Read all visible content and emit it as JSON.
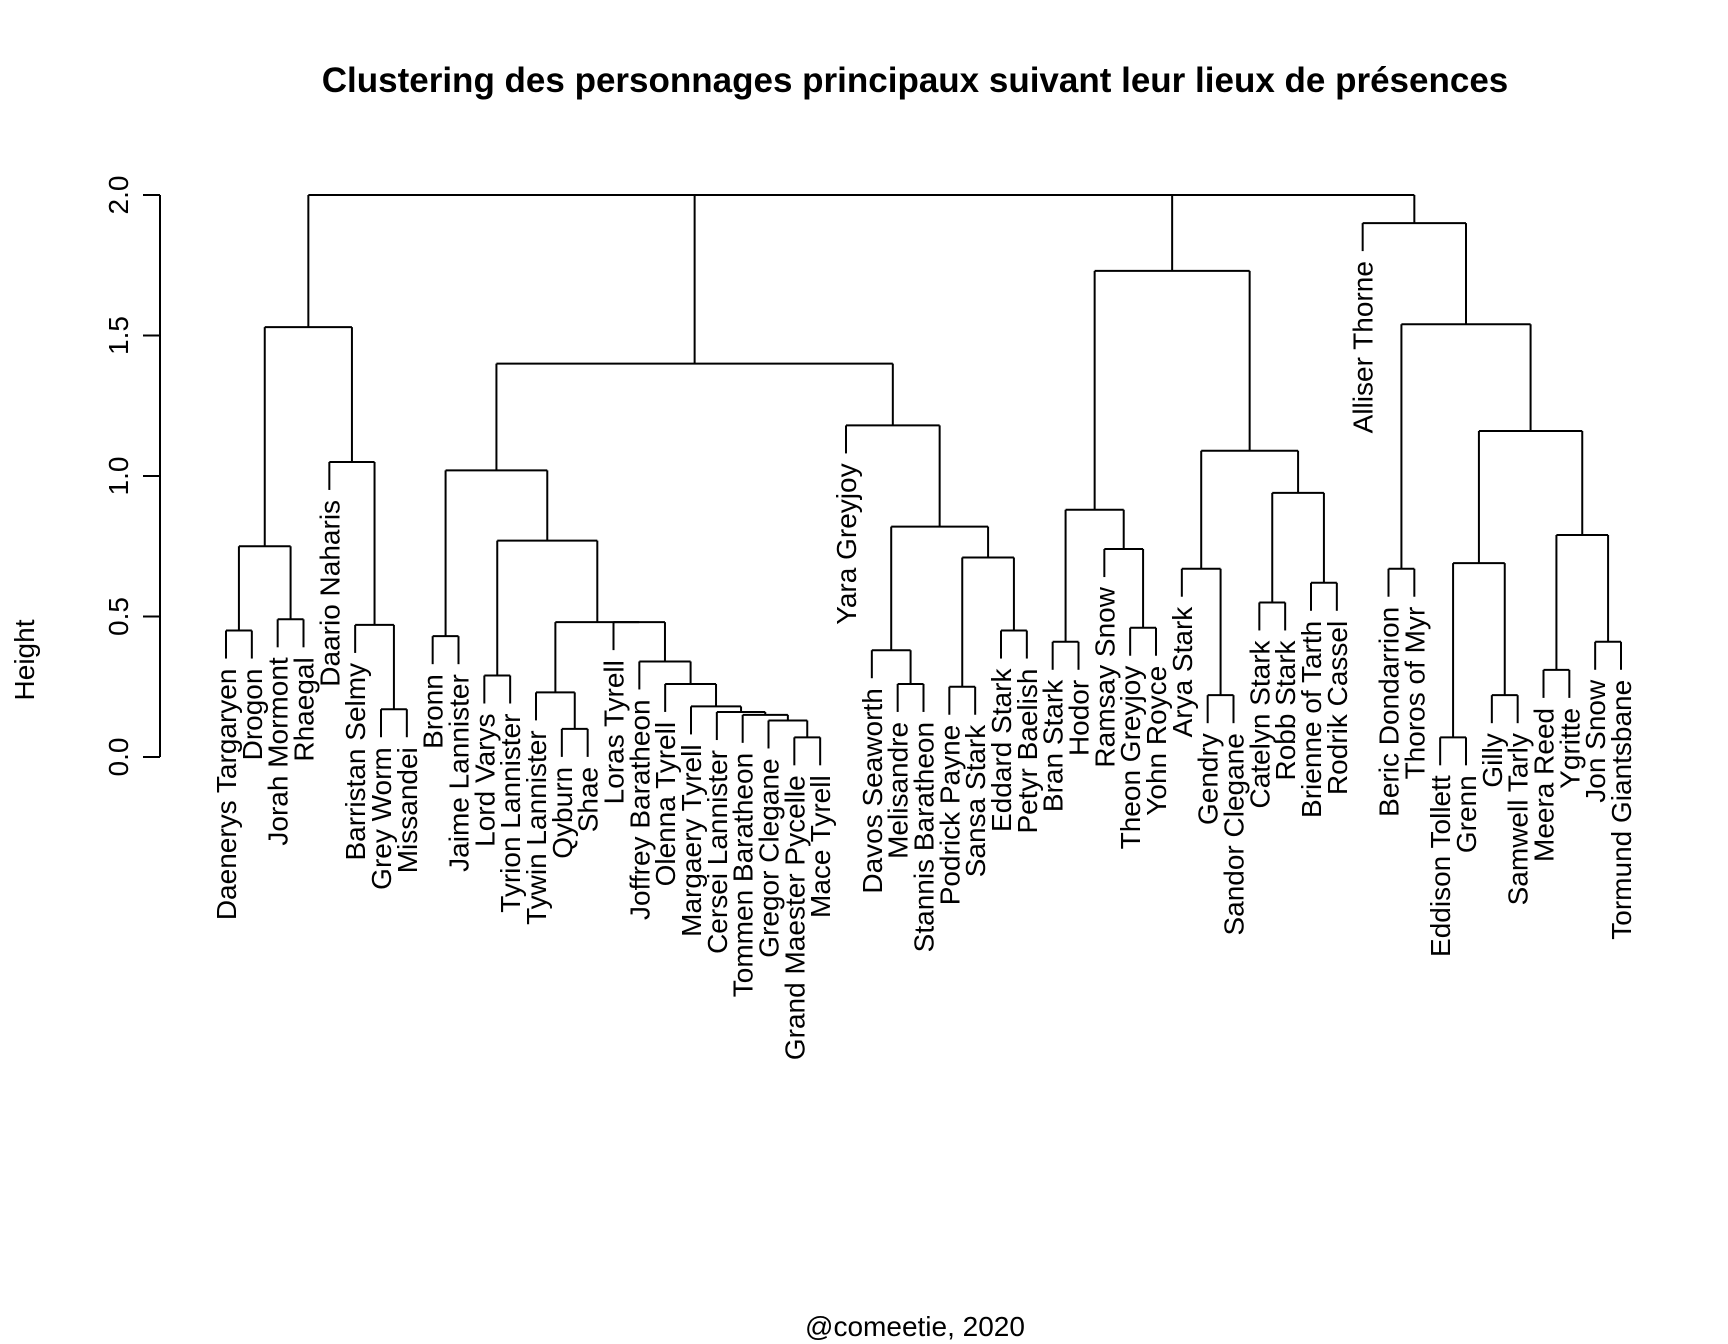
{
  "chart_data": {
    "type": "dendrogram",
    "title": "Clustering des personnages principaux suivant leur lieux de présences",
    "ylabel": "Height",
    "xlabel": "",
    "caption": "@comeetie, 2020",
    "ylim": [
      0,
      2.0
    ],
    "yticks": [
      "0.0",
      "0.5",
      "1.0",
      "1.5",
      "2.0"
    ],
    "leaves": [
      "Daenerys Targaryen",
      "Drogon",
      "Jorah Mormont",
      "Rhaegal",
      "Daario Naharis",
      "Barristan Selmy",
      "Grey Worm",
      "Missandei",
      "Bronn",
      "Jaime Lannister",
      "Lord Varys",
      "Tyrion Lannister",
      "Tywin Lannister",
      "Qyburn",
      "Shae",
      "Loras Tyrell",
      "Joffrey Baratheon",
      "Olenna Tyrell",
      "Margaery Tyrell",
      "Cersei Lannister",
      "Tommen Baratheon",
      "Gregor Clegane",
      "Grand Maester Pycelle",
      "Mace Tyrell",
      "Yara Greyjoy",
      "Davos Seaworth",
      "Melisandre",
      "Stannis Baratheon",
      "Podrick Payne",
      "Sansa Stark",
      "Eddard Stark",
      "Petyr Baelish",
      "Bran Stark",
      "Hodor",
      "Ramsay Snow",
      "Theon Greyjoy",
      "Yohn Royce",
      "Arya Stark",
      "Gendry",
      "Sandor Clegane",
      "Catelyn Stark",
      "Robb Stark",
      "Brienne of Tarth",
      "Rodrik Cassel",
      "Alliser Thorne",
      "Beric Dondarrion",
      "Thoros of Myr",
      "Eddison Tollett",
      "Grenn",
      "Gilly",
      "Samwell Tarly",
      "Meera Reed",
      "Ygritte",
      "Jon Snow",
      "Tormund Giantsbane"
    ],
    "merges": [
      {
        "id": 1,
        "a": "L0",
        "b": "L1",
        "height": 0.45
      },
      {
        "id": 2,
        "a": "L2",
        "b": "L3",
        "height": 0.49
      },
      {
        "id": 3,
        "a": "N1",
        "b": "N2",
        "height": 0.75
      },
      {
        "id": 4,
        "a": "L6",
        "b": "L7",
        "height": 0.17
      },
      {
        "id": 5,
        "a": "L5",
        "b": "N4",
        "height": 0.47
      },
      {
        "id": 6,
        "a": "L4",
        "b": "N5",
        "height": 1.05
      },
      {
        "id": 7,
        "a": "N3",
        "b": "N6",
        "height": 1.53
      },
      {
        "id": 8,
        "a": "L8",
        "b": "L9",
        "height": 0.43
      },
      {
        "id": 9,
        "a": "L10",
        "b": "L11",
        "height": 0.29
      },
      {
        "id": 10,
        "a": "L13",
        "b": "L14",
        "height": 0.1
      },
      {
        "id": 11,
        "a": "L12",
        "b": "N10",
        "height": 0.23
      },
      {
        "id": 12,
        "a": "L22",
        "b": "L23",
        "height": 0.07
      },
      {
        "id": 13,
        "a": "L21",
        "b": "N12",
        "height": 0.13
      },
      {
        "id": 14,
        "a": "L20",
        "b": "N13",
        "height": 0.15
      },
      {
        "id": 15,
        "a": "L19",
        "b": "N14",
        "height": 0.16
      },
      {
        "id": 16,
        "a": "L18",
        "b": "N15",
        "height": 0.18
      },
      {
        "id": 17,
        "a": "L17",
        "b": "N16",
        "height": 0.26
      },
      {
        "id": 18,
        "a": "L16",
        "b": "N17",
        "height": 0.34
      },
      {
        "id": 19,
        "a": "L15",
        "b": "N18",
        "height": 0.48
      },
      {
        "id": 20,
        "a": "N11",
        "b": "N19",
        "height": 0.48
      },
      {
        "id": 21,
        "a": "N9",
        "b": "N20",
        "height": 0.77
      },
      {
        "id": 22,
        "a": "N8",
        "b": "N21",
        "height": 1.02
      },
      {
        "id": 23,
        "a": "L26",
        "b": "L27",
        "height": 0.26
      },
      {
        "id": 24,
        "a": "L25",
        "b": "N23",
        "height": 0.38
      },
      {
        "id": 25,
        "a": "L28",
        "b": "L29",
        "height": 0.25
      },
      {
        "id": 26,
        "a": "L30",
        "b": "L31",
        "height": 0.45
      },
      {
        "id": 27,
        "a": "N25",
        "b": "N26",
        "height": 0.71
      },
      {
        "id": 28,
        "a": "N24",
        "b": "N27",
        "height": 0.82
      },
      {
        "id": 29,
        "a": "L24",
        "b": "N28",
        "height": 1.18
      },
      {
        "id": 30,
        "a": "N22",
        "b": "N29",
        "height": 1.4
      },
      {
        "id": 31,
        "a": "L32",
        "b": "L33",
        "height": 0.41
      },
      {
        "id": 32,
        "a": "L35",
        "b": "L36",
        "height": 0.46
      },
      {
        "id": 33,
        "a": "L34",
        "b": "N32",
        "height": 0.74
      },
      {
        "id": 34,
        "a": "N31",
        "b": "N33",
        "height": 0.88
      },
      {
        "id": 35,
        "a": "L38",
        "b": "L39",
        "height": 0.22
      },
      {
        "id": 36,
        "a": "L37",
        "b": "N35",
        "height": 0.67
      },
      {
        "id": 37,
        "a": "L40",
        "b": "L41",
        "height": 0.55
      },
      {
        "id": 38,
        "a": "L42",
        "b": "L43",
        "height": 0.62
      },
      {
        "id": 39,
        "a": "N37",
        "b": "N38",
        "height": 0.94
      },
      {
        "id": 40,
        "a": "N36",
        "b": "N39",
        "height": 1.09
      },
      {
        "id": 41,
        "a": "N34",
        "b": "N40",
        "height": 1.73
      },
      {
        "id": 42,
        "a": "L45",
        "b": "L46",
        "height": 0.67
      },
      {
        "id": 43,
        "a": "L47",
        "b": "L48",
        "height": 0.07
      },
      {
        "id": 44,
        "a": "L49",
        "b": "L50",
        "height": 0.22
      },
      {
        "id": 45,
        "a": "N43",
        "b": "N44",
        "height": 0.69
      },
      {
        "id": 46,
        "a": "L51",
        "b": "L52",
        "height": 0.31
      },
      {
        "id": 47,
        "a": "L53",
        "b": "L54",
        "height": 0.41
      },
      {
        "id": 48,
        "a": "N46",
        "b": "N47",
        "height": 0.79
      },
      {
        "id": 49,
        "a": "N45",
        "b": "N48",
        "height": 1.16
      },
      {
        "id": 50,
        "a": "N42",
        "b": "N49",
        "height": 1.54
      },
      {
        "id": 51,
        "a": "L44",
        "b": "N50",
        "height": 1.9
      },
      {
        "id": 52,
        "a": "N41",
        "b": "N51",
        "height": 2.0
      },
      {
        "id": 53,
        "a": "N30",
        "b": "N52",
        "height": 2.0
      },
      {
        "id": 54,
        "a": "N7",
        "b": "N53",
        "height": 2.0
      }
    ]
  }
}
